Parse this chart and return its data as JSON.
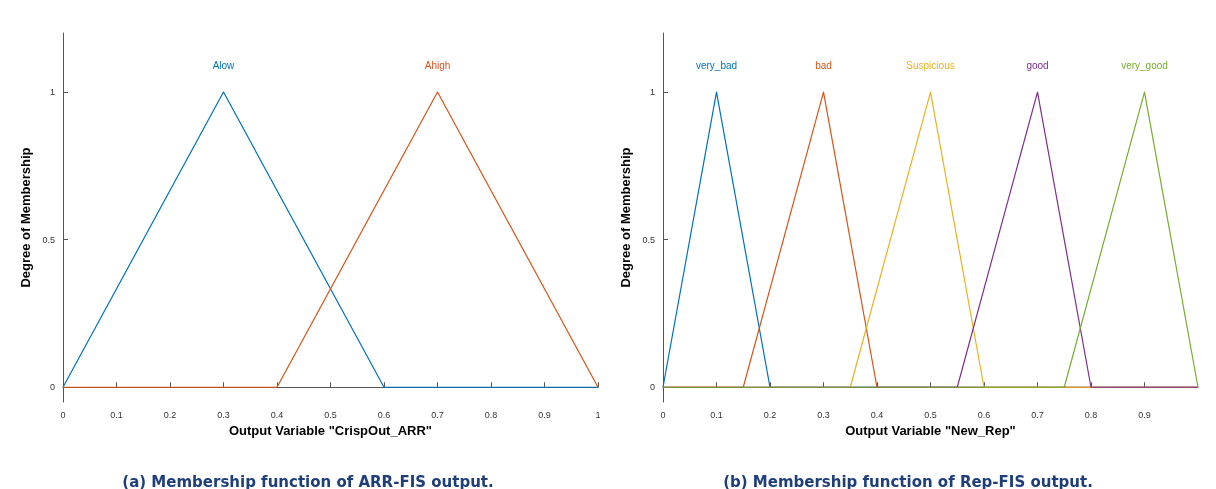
{
  "chart_data": [
    {
      "type": "line",
      "xlabel": "Output Variable \"CrispOut_ARR\"",
      "ylabel": "Degree of Membership",
      "xlim": [
        0,
        1
      ],
      "ylim": [
        -0.05,
        1.2
      ],
      "xticks": [
        0,
        0.1,
        0.2,
        0.3,
        0.4,
        0.5,
        0.6,
        0.7,
        0.8,
        0.9,
        1
      ],
      "yticks": [
        0,
        0.5,
        1
      ],
      "grid": false,
      "legend": false,
      "marker": "none",
      "line_style": "solid",
      "annotations": [
        "(a) Membership function of ARR-FIS output."
      ],
      "series": [
        {
          "name": "Alow",
          "color": "#0072bd",
          "x": [
            0,
            0.3,
            0.6,
            1
          ],
          "values": [
            0,
            1,
            0,
            0
          ]
        },
        {
          "name": "Ahigh",
          "color": "#d95319",
          "x": [
            0,
            0.4,
            0.7,
            1
          ],
          "values": [
            0,
            0,
            1,
            0
          ]
        }
      ]
    },
    {
      "type": "line",
      "xlabel": "Output Variable \"New_Rep\"",
      "ylabel": "Degree of Membership",
      "xlim": [
        0,
        1
      ],
      "ylim": [
        -0.05,
        1.2
      ],
      "xticks": [
        0,
        0.1,
        0.2,
        0.3,
        0.4,
        0.5,
        0.6,
        0.7,
        0.8,
        0.9
      ],
      "yticks": [
        0,
        0.5,
        1
      ],
      "grid": false,
      "legend": false,
      "marker": "none",
      "line_style": "solid",
      "annotations": [
        "(b) Membership function of Rep-FIS output."
      ],
      "series": [
        {
          "name": "very_bad",
          "color": "#0072bd",
          "x": [
            0,
            0.1,
            0.2,
            1
          ],
          "values": [
            0,
            1,
            0,
            0
          ]
        },
        {
          "name": "bad",
          "color": "#d95319",
          "x": [
            0,
            0.15,
            0.3,
            0.4,
            1
          ],
          "values": [
            0,
            0,
            1,
            0,
            0
          ]
        },
        {
          "name": "Suspicious",
          "color": "#edb120",
          "x": [
            0,
            0.35,
            0.5,
            0.6,
            1
          ],
          "values": [
            0,
            0,
            1,
            0,
            0
          ]
        },
        {
          "name": "good",
          "color": "#7e2f8e",
          "x": [
            0,
            0.55,
            0.7,
            0.8,
            1
          ],
          "values": [
            0,
            0,
            1,
            0,
            0
          ]
        },
        {
          "name": "very_good",
          "color": "#77ac30",
          "x": [
            0,
            0.75,
            0.9,
            1
          ],
          "values": [
            0,
            0,
            1,
            0
          ]
        }
      ]
    }
  ]
}
